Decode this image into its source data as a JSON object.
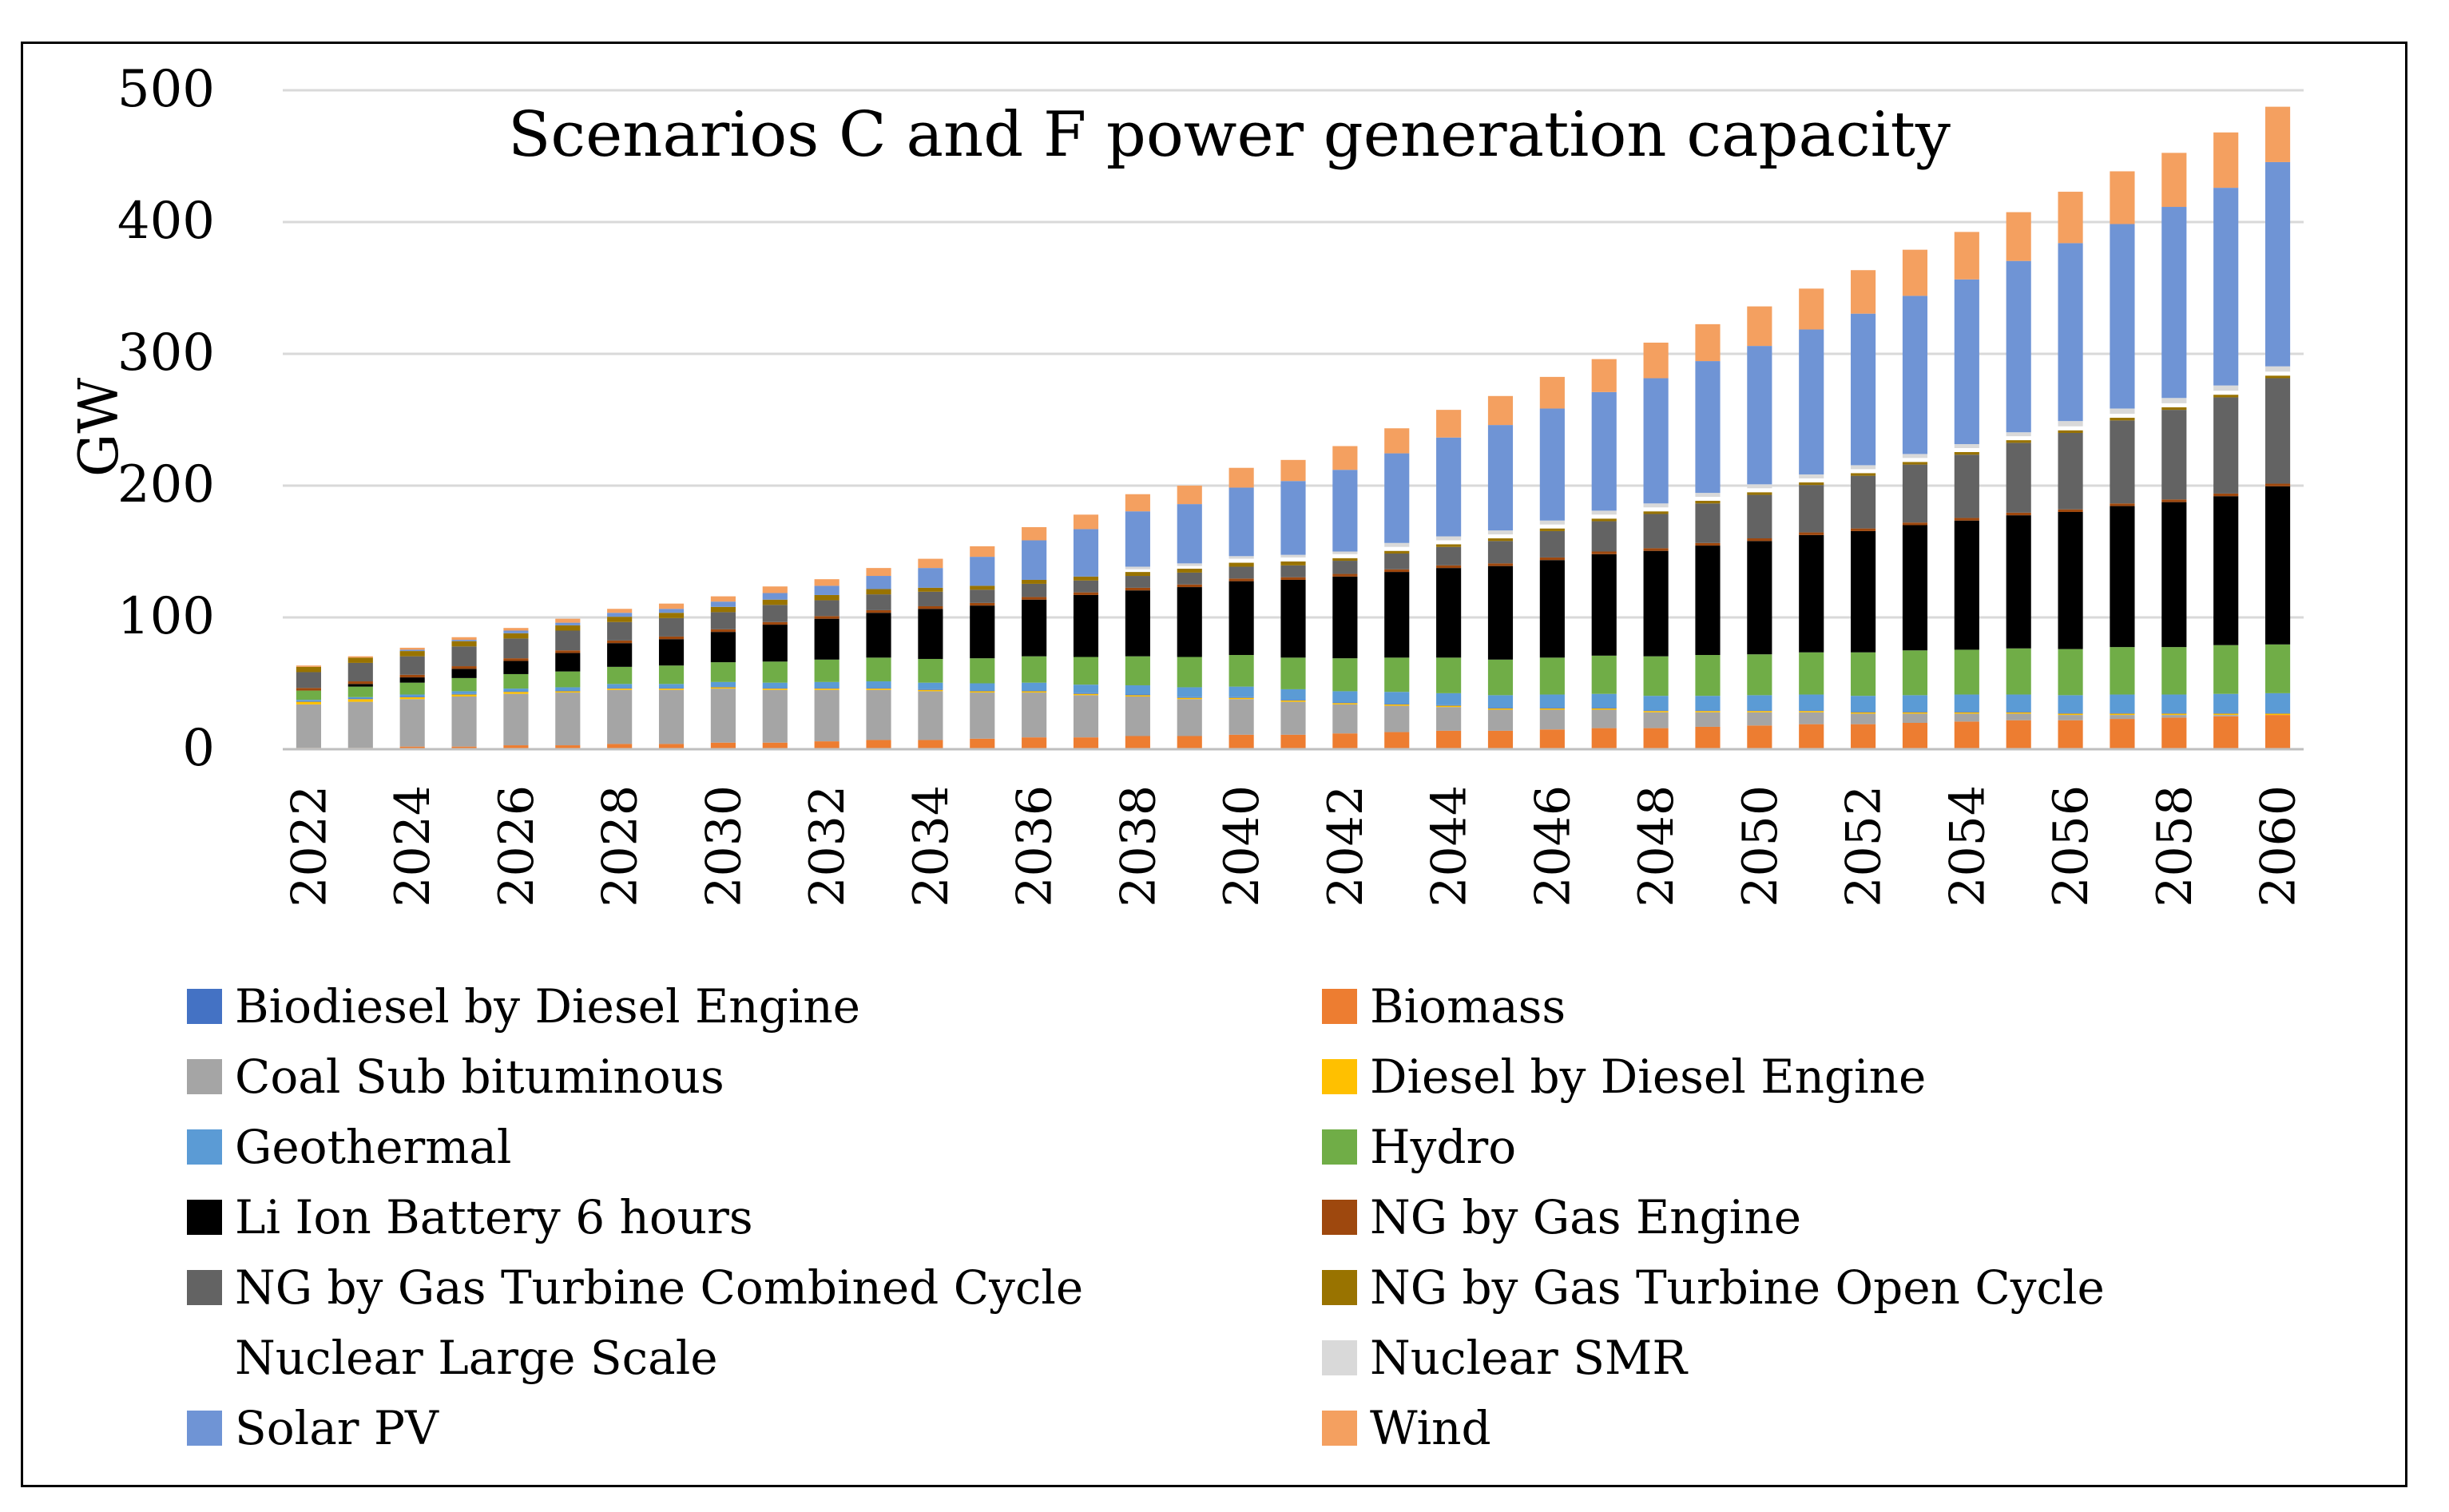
{
  "chart_data": {
    "type": "bar",
    "stacked": true,
    "title": "Scenarios C and F power generation capacity",
    "ylabel": "GW",
    "xlabel": "",
    "ylim": [
      0,
      500
    ],
    "yticks": [
      0,
      100,
      200,
      300,
      400,
      500
    ],
    "xtick_labels": [
      "2022",
      "2024",
      "2026",
      "2028",
      "2030",
      "2032",
      "2034",
      "2036",
      "2038",
      "2040",
      "2042",
      "2044",
      "2046",
      "2048",
      "2050",
      "2052",
      "2054",
      "2056",
      "2058",
      "2060"
    ],
    "categories": [
      "2022",
      "2023",
      "2024",
      "2025",
      "2026",
      "2027",
      "2028",
      "2029",
      "2030",
      "2031",
      "2032",
      "2033",
      "2034",
      "2035",
      "2036",
      "2037",
      "2038",
      "2039",
      "2040",
      "2041",
      "2042",
      "2043",
      "2044",
      "2045",
      "2046",
      "2047",
      "2048",
      "2049",
      "2050",
      "2051",
      "2052",
      "2053",
      "2054",
      "2055",
      "2056",
      "2057",
      "2058",
      "2059",
      "2060"
    ],
    "series": [
      {
        "name": "Biomass",
        "color": "#ED7D31",
        "values": [
          1,
          1,
          2,
          2,
          3,
          3,
          4,
          4,
          5,
          5,
          6,
          7,
          7,
          8,
          9,
          9,
          10,
          10,
          11,
          11,
          12,
          13,
          14,
          14,
          15,
          16,
          16,
          17,
          18,
          19,
          19,
          20,
          21,
          22,
          22,
          23,
          24,
          25,
          26
        ]
      },
      {
        "name": "Coal Sub bituminous",
        "color": "#A5A5A5",
        "values": [
          33,
          35,
          36,
          38,
          39,
          40,
          41,
          41,
          41,
          40,
          39,
          38,
          37,
          35,
          34,
          32,
          30,
          28,
          27,
          25,
          22,
          20,
          18,
          16,
          15,
          14,
          12,
          11,
          10,
          9,
          8,
          7,
          6,
          5,
          4,
          3,
          2,
          1,
          0
        ]
      },
      {
        "name": "Diesel by Diesel Engine",
        "color": "#FFC000",
        "values": [
          2,
          2,
          1.5,
          1.5,
          1.5,
          1,
          1,
          1,
          1,
          1,
          1,
          1,
          1,
          1,
          1,
          1,
          1,
          1,
          1,
          1,
          1,
          1,
          1,
          1,
          1,
          1,
          1,
          1,
          1,
          1,
          1,
          1,
          1,
          1,
          1,
          1,
          1,
          1,
          1
        ]
      },
      {
        "name": "Biodiesel by Diesel Engine",
        "color": "#4472C4",
        "values": [
          0.5,
          0.5,
          0.5,
          0.5,
          0.5,
          0.5,
          0.5,
          0.5,
          0.5,
          0.5,
          0.5,
          0.5,
          0.5,
          0.5,
          0.5,
          0.5,
          0.5,
          0.5,
          0.5,
          0.5,
          0.5,
          0.5,
          0.5,
          0.5,
          0.5,
          0.5,
          0.5,
          0.5,
          0.5,
          0.5,
          0.5,
          0.5,
          0.5,
          0.5,
          0.5,
          0.5,
          0.5,
          0.5,
          0.5
        ]
      },
      {
        "name": "Geothermal",
        "color": "#5B9BD5",
        "values": [
          1,
          1,
          1.5,
          2,
          2,
          2.5,
          3,
          3,
          3.5,
          4,
          4.5,
          5,
          5,
          5.5,
          6,
          6.5,
          7,
          7.5,
          8,
          8,
          8.5,
          9,
          9,
          9.5,
          10,
          10.5,
          11,
          11,
          11.5,
          12,
          12,
          12.5,
          13,
          13,
          13.5,
          14,
          14,
          14.5,
          15
        ]
      },
      {
        "name": "Hydro",
        "color": "#70AD47",
        "values": [
          7,
          8,
          9,
          10,
          11,
          12,
          13,
          14,
          15,
          16,
          17,
          18,
          18,
          19,
          20,
          21,
          22,
          23,
          24,
          24,
          25,
          26,
          27,
          27,
          28,
          29,
          30,
          31,
          31,
          32,
          33,
          34,
          34,
          35,
          35,
          36,
          36,
          37,
          37
        ]
      },
      {
        "name": "Li Ion Battery 6 hours",
        "color": "#000000",
        "values": [
          0,
          2,
          4,
          7,
          10,
          14,
          18,
          20,
          23,
          28,
          31,
          34,
          38,
          40,
          43,
          47,
          50,
          53,
          56,
          59,
          62,
          65,
          68,
          71,
          74,
          77,
          80,
          83,
          86,
          89,
          92,
          95,
          98,
          101,
          104,
          107,
          110,
          113,
          120
        ]
      },
      {
        "name": "NG by Gas Engine",
        "color": "#9E480E",
        "values": [
          2,
          2,
          2,
          2,
          2,
          2,
          2,
          2,
          2,
          2,
          2,
          2,
          2,
          2,
          2,
          2,
          2,
          2,
          2,
          2,
          2,
          2,
          2,
          2,
          2,
          2,
          2,
          2,
          2,
          2,
          2,
          2,
          2,
          2,
          2,
          2,
          2,
          2,
          2
        ]
      },
      {
        "name": "NG by Gas Turbine Combined Cycle",
        "color": "#636363",
        "values": [
          12,
          14,
          14,
          15,
          15,
          15,
          14,
          14,
          13,
          13,
          12,
          12,
          11,
          10,
          10,
          9,
          9,
          9,
          9,
          9,
          10,
          12,
          14,
          17,
          20,
          23,
          26,
          30,
          33,
          36,
          40,
          44,
          48,
          53,
          58,
          63,
          68,
          73,
          80
        ]
      },
      {
        "name": "NG by Gas Turbine Open Cycle",
        "color": "#997300",
        "values": [
          4,
          4,
          4,
          4,
          4,
          4,
          4,
          4,
          4,
          4,
          4,
          4,
          3,
          3,
          3,
          3,
          3,
          3,
          3,
          3,
          2,
          2,
          2,
          2,
          2,
          2,
          2,
          2,
          2,
          2,
          2,
          2,
          2,
          2,
          2,
          2,
          2,
          2,
          2
        ]
      },
      {
        "name": "Nuclear Large Scale",
        "color": "#FFFFFF",
        "values": [
          0,
          0,
          0,
          0,
          0,
          0,
          0,
          0,
          0,
          0,
          0,
          0,
          0,
          0,
          0,
          0,
          2,
          2,
          3,
          3,
          3,
          3,
          3,
          3,
          3,
          3,
          3,
          3,
          3,
          3,
          3,
          3,
          3,
          3,
          3,
          3,
          3,
          3,
          3
        ]
      },
      {
        "name": "Nuclear SMR",
        "color": "#D9D9D9",
        "values": [
          0,
          0,
          0,
          0,
          0,
          0,
          0,
          0,
          0,
          0,
          0,
          0,
          0,
          0,
          0,
          0,
          2,
          2,
          2,
          2,
          2,
          3,
          3,
          3,
          3,
          3,
          3,
          3,
          3,
          3,
          3,
          3,
          3,
          3,
          4,
          4,
          4,
          4,
          4
        ]
      },
      {
        "name": "Solar PV",
        "color": "#6F94D5",
        "values": [
          0,
          0,
          1,
          1,
          2,
          2,
          3,
          3,
          4,
          5,
          7,
          10,
          15,
          22,
          30,
          36,
          42,
          45,
          52,
          56,
          62,
          68,
          75,
          80,
          85,
          90,
          95,
          100,
          105,
          110,
          115,
          120,
          125,
          130,
          135,
          140,
          145,
          150,
          155
        ]
      },
      {
        "name": "Wind",
        "color": "#F4A060",
        "values": [
          1,
          1,
          1.5,
          2,
          2,
          3,
          3,
          4,
          4,
          5,
          5,
          6,
          7,
          8,
          10,
          11,
          13,
          14,
          15,
          16,
          18,
          19,
          21,
          22,
          24,
          25,
          27,
          28,
          30,
          31,
          33,
          35,
          36,
          37,
          39,
          40,
          41,
          42,
          42
        ]
      }
    ],
    "legend": {
      "placement": "bottom",
      "columns": 2,
      "items": [
        {
          "label": "Biodiesel by Diesel Engine",
          "color": "#4472C4"
        },
        {
          "label": "Biomass",
          "color": "#ED7D31"
        },
        {
          "label": "Coal Sub bituminous",
          "color": "#A5A5A5"
        },
        {
          "label": "Diesel by Diesel Engine",
          "color": "#FFC000"
        },
        {
          "label": "Geothermal",
          "color": "#5B9BD5"
        },
        {
          "label": "Hydro",
          "color": "#70AD47"
        },
        {
          "label": "Li Ion Battery 6 hours",
          "color": "#000000"
        },
        {
          "label": "NG by Gas Engine",
          "color": "#9E480E"
        },
        {
          "label": "NG by Gas Turbine Combined Cycle",
          "color": "#636363"
        },
        {
          "label": "NG by Gas Turbine Open Cycle",
          "color": "#997300"
        },
        {
          "label": "Nuclear Large Scale",
          "color": "#FFFFFF"
        },
        {
          "label": "Nuclear SMR",
          "color": "#D9D9D9"
        },
        {
          "label": "Solar PV",
          "color": "#6F94D5"
        },
        {
          "label": "Wind",
          "color": "#F4A060"
        }
      ]
    }
  }
}
